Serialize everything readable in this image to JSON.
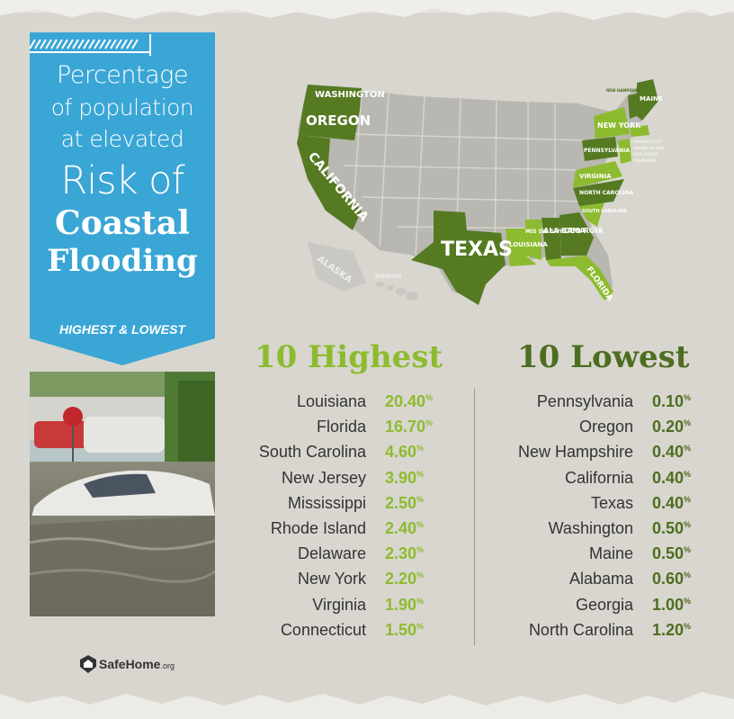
{
  "banner": {
    "line1": "Percentage",
    "line2": "of population",
    "line3": "at elevated",
    "line4": "Risk of",
    "line5": "Coastal",
    "line6": "Flooding",
    "subtitle": "HIGHEST & LOWEST",
    "color": "#3aa6d6"
  },
  "map": {
    "labels": [
      {
        "name": "WASHINGTON"
      },
      {
        "name": "OREGON"
      },
      {
        "name": "CALIFORNIA"
      },
      {
        "name": "TEXAS"
      },
      {
        "name": "ALASKA"
      },
      {
        "name": "HAWAII"
      },
      {
        "name": "LOUISIANA"
      },
      {
        "name": "MIS SIS SIPPI"
      },
      {
        "name": "ALA BAMA"
      },
      {
        "name": "GEO RGIA"
      },
      {
        "name": "FLORIDA"
      },
      {
        "name": "NORTH CAROLINA"
      },
      {
        "name": "SOUTH CAROLINA"
      },
      {
        "name": "VIRGINIA"
      },
      {
        "name": "PENNSYLVANIA"
      },
      {
        "name": "NEW YORK"
      },
      {
        "name": "NEW HAMPSHIRE"
      },
      {
        "name": "MAINE"
      },
      {
        "name": "CONNECTICUT"
      },
      {
        "name": "RHODE ISLAND"
      },
      {
        "name": "NEW JERSEY"
      },
      {
        "name": "DELAWARE"
      }
    ],
    "highlight_colors": {
      "highest": "#8dbb2f",
      "lowest": "#557a22",
      "other": "#b8b7b1"
    }
  },
  "highest": {
    "title": "10 Highest",
    "items": [
      {
        "state": "Louisiana",
        "value": "20.40",
        "unit": "%"
      },
      {
        "state": "Florida",
        "value": "16.70",
        "unit": "%"
      },
      {
        "state": "South Carolina",
        "value": "4.60",
        "unit": "%"
      },
      {
        "state": "New Jersey",
        "value": "3.90",
        "unit": "%"
      },
      {
        "state": "Mississippi",
        "value": "2.50",
        "unit": "%"
      },
      {
        "state": "Rhode Island",
        "value": "2.40",
        "unit": "%"
      },
      {
        "state": "Delaware",
        "value": "2.30",
        "unit": "%"
      },
      {
        "state": "New York",
        "value": "2.20",
        "unit": "%"
      },
      {
        "state": "Virginia",
        "value": "1.90",
        "unit": "%"
      },
      {
        "state": "Connecticut",
        "value": "1.50",
        "unit": "%"
      }
    ]
  },
  "lowest": {
    "title": "10 Lowest",
    "items": [
      {
        "state": "Pennsylvania",
        "value": "0.10",
        "unit": "%"
      },
      {
        "state": "Oregon",
        "value": "0.20",
        "unit": "%"
      },
      {
        "state": "New Hampshire",
        "value": "0.40",
        "unit": "%"
      },
      {
        "state": "California",
        "value": "0.40",
        "unit": "%"
      },
      {
        "state": "Texas",
        "value": "0.40",
        "unit": "%"
      },
      {
        "state": "Washington",
        "value": "0.50",
        "unit": "%"
      },
      {
        "state": "Maine",
        "value": "0.50",
        "unit": "%"
      },
      {
        "state": "Alabama",
        "value": "0.60",
        "unit": "%"
      },
      {
        "state": "Georgia",
        "value": "1.00",
        "unit": "%"
      },
      {
        "state": "North Carolina",
        "value": "1.20",
        "unit": "%"
      }
    ]
  },
  "logo": {
    "name": "SafeHome",
    "suffix": ".org",
    "icon": "house-shield-icon"
  }
}
